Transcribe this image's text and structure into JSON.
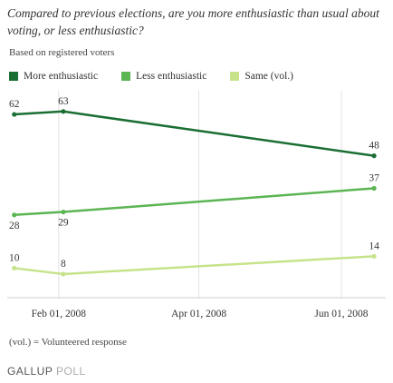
{
  "chart_data": {
    "type": "line",
    "title": "Compared to previous elections, are you more enthusiastic than usual about voting, or less enthusiastic?",
    "subtitle": "Based on registered voters",
    "x": [
      "2008-01-13",
      "2008-02-03",
      "2008-06-15"
    ],
    "x_ticks": [
      "Feb 01, 2008",
      "Apr 01, 2008",
      "Jun 01, 2008"
    ],
    "x_tick_dates": [
      "2008-02-01",
      "2008-04-01",
      "2008-06-01"
    ],
    "xlim": [
      "2008-01-10",
      "2008-06-20"
    ],
    "ylim": [
      0,
      70
    ],
    "grid": "vertical",
    "legend_position": "top",
    "series": [
      {
        "name": "More enthusiastic",
        "values": [
          62,
          63,
          48
        ],
        "color": "#1a6e33"
      },
      {
        "name": "Less enthusiastic",
        "values": [
          28,
          29,
          37
        ],
        "color": "#5bb553"
      },
      {
        "name": "Same (vol.)",
        "values": [
          10,
          8,
          14
        ],
        "color": "#c6e38a"
      }
    ],
    "footnote": "(vol.) = Volunteered response"
  },
  "brand": {
    "part1": "GALLUP",
    "part2": "POLL"
  }
}
